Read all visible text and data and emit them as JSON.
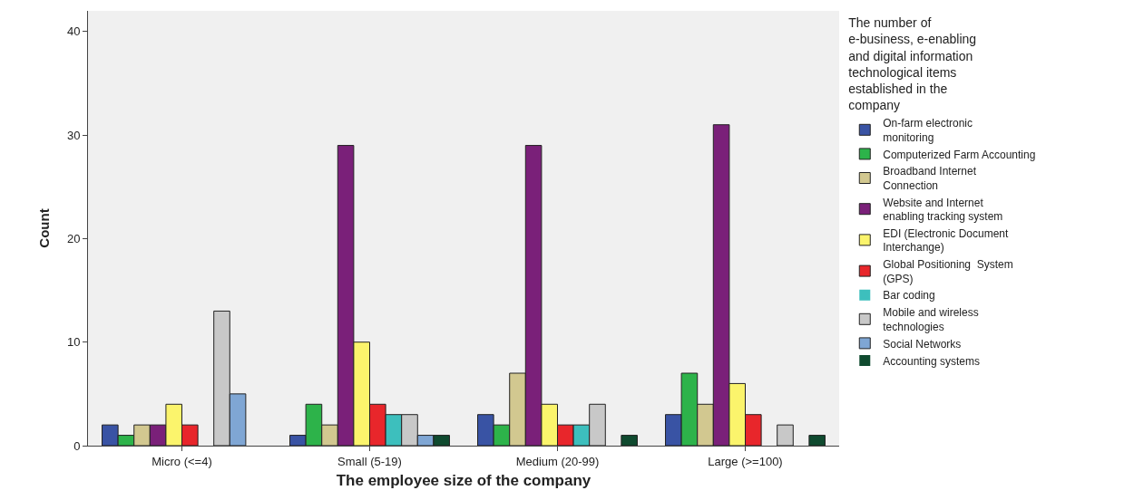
{
  "chart_data": {
    "type": "bar",
    "xlabel": "The employee size of the company",
    "ylabel": "Count",
    "legend_title": "The number of e-business, e-enabling and digital information technological items established in the company",
    "categories": [
      "Micro (<=4)",
      "Small (5-19)",
      "Medium (20-99)",
      "Large (>=100)"
    ],
    "ylim": [
      0,
      42
    ],
    "yticks": [
      0,
      10,
      20,
      30,
      40
    ],
    "grid": false,
    "legend": "right",
    "series": [
      {
        "name": "On-farm electronic monitoring",
        "color": "#3953a4",
        "values": [
          2,
          1,
          3,
          3
        ]
      },
      {
        "name": "Computerized Farm Accounting",
        "color": "#2db34a",
        "values": [
          1,
          4,
          2,
          7
        ]
      },
      {
        "name": "Broadband Internet Connection",
        "color": "#d2c890",
        "values": [
          2,
          2,
          7,
          4
        ]
      },
      {
        "name": "Website and Internet enabling tracking system",
        "color": "#7a2079",
        "values": [
          2,
          29,
          29,
          31
        ]
      },
      {
        "name": "EDI (Electronic Document Interchange)",
        "color": "#fbf46c",
        "values": [
          4,
          10,
          4,
          6
        ]
      },
      {
        "name": "Global Positioning  System (GPS)",
        "color": "#e8262b",
        "values": [
          2,
          4,
          2,
          3
        ]
      },
      {
        "name": "Bar coding",
        "color": "#3dbfbd",
        "values": [
          0,
          3,
          2,
          0
        ]
      },
      {
        "name": "Mobile and wireless technologies",
        "color": "#c8c8c8",
        "values": [
          13,
          3,
          4,
          2
        ]
      },
      {
        "name": "Social Networks",
        "color": "#7fa6d4",
        "values": [
          5,
          1,
          0,
          0
        ]
      },
      {
        "name": "Accounting systems",
        "color": "#0f4a2f",
        "values": [
          0,
          1,
          1,
          1
        ]
      }
    ]
  }
}
